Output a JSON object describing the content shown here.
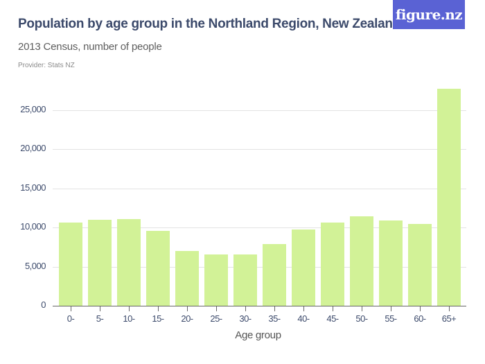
{
  "header": {
    "title": "Population by age group in the Northland Region, New Zealand",
    "subtitle": "2013 Census, number of people",
    "provider": "Provider: Stats NZ",
    "logo": "figure.nz"
  },
  "colors": {
    "bar": "#d2f297",
    "title": "#3c4a6b",
    "logo_bg": "#5a62d4",
    "grid": "#e3e3e3"
  },
  "chart_data": {
    "type": "bar",
    "title": "Population by age group in the Northland Region, New Zealand",
    "subtitle": "2013 Census, number of people",
    "xlabel": "Age group",
    "ylabel": "",
    "categories": [
      "0-",
      "5-",
      "10-",
      "15-",
      "20-",
      "25-",
      "30-",
      "35-",
      "40-",
      "45-",
      "50-",
      "55-",
      "60-",
      "65+"
    ],
    "values": [
      10640,
      10990,
      11040,
      9570,
      7000,
      6560,
      6520,
      7850,
      9750,
      10600,
      11440,
      10860,
      10420,
      27790
    ],
    "ylim": [
      0,
      27790
    ],
    "yticks": [
      0,
      5000,
      10000,
      15000,
      20000,
      25000
    ],
    "ytick_labels": [
      "0",
      "5,000",
      "10,000",
      "15,000",
      "20,000",
      "25,000"
    ],
    "grid": true,
    "legend": "none"
  }
}
